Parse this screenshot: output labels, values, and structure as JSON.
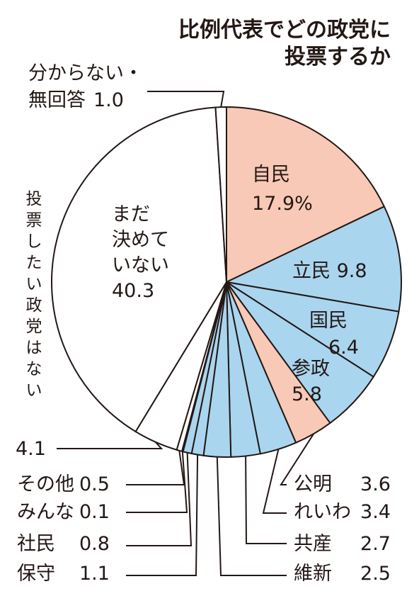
{
  "chart_data": {
    "type": "pie",
    "title_lines": [
      "比例代表でどの政党に",
      "投票するか"
    ],
    "unit": "%",
    "colors": {
      "ldp": "#f8c9b6",
      "opposition": "#a9d5ef",
      "other": "#ffffff",
      "stroke": "#231815"
    },
    "slices": [
      {
        "name": "自民",
        "value": 17.9,
        "value_text": "17.9%",
        "color": "#f8c9b6"
      },
      {
        "name": "立民",
        "value": 9.8,
        "value_text": "9.8",
        "color": "#a9d5ef"
      },
      {
        "name": "国民",
        "value": 6.4,
        "value_text": "6.4",
        "color": "#a9d5ef"
      },
      {
        "name": "参政",
        "value": 5.8,
        "value_text": "5.8",
        "color": "#a9d5ef"
      },
      {
        "name": "公明",
        "value": 3.6,
        "value_text": "3.6",
        "color": "#f8c9b6"
      },
      {
        "name": "れいわ",
        "value": 3.4,
        "value_text": "3.4",
        "color": "#a9d5ef"
      },
      {
        "name": "共産",
        "value": 2.7,
        "value_text": "2.7",
        "color": "#a9d5ef"
      },
      {
        "name": "維新",
        "value": 2.5,
        "value_text": "2.5",
        "color": "#a9d5ef"
      },
      {
        "name": "保守",
        "value": 1.1,
        "value_text": "1.1",
        "color": "#a9d5ef"
      },
      {
        "name": "社民",
        "value": 0.8,
        "value_text": "0.8",
        "color": "#a9d5ef"
      },
      {
        "name": "みんな",
        "value": 0.1,
        "value_text": "0.1",
        "color": "#a9d5ef"
      },
      {
        "name": "その他",
        "value": 0.5,
        "value_text": "0.5",
        "color": "#ffffff"
      },
      {
        "name": "投票したい政党はない",
        "value": 4.1,
        "value_text": "4.1",
        "color": "#ffffff"
      },
      {
        "name": "まだ決めていない",
        "value": 40.3,
        "value_text": "40.3",
        "color": "#ffffff"
      },
      {
        "name": "分からない・無回答",
        "value": 1.0,
        "value_text": "1.0",
        "color": "#ffffff"
      }
    ],
    "inside_labels": {
      "ldp_lines": [
        "自民",
        "17.9%"
      ],
      "cdp_line": [
        "立民",
        "9.8"
      ],
      "dpfp_lines": [
        "国民",
        "6.4"
      ],
      "sanseito_lines": [
        "参政",
        "5.8"
      ],
      "undecided_lines": [
        "まだ",
        "決めて",
        "いない",
        "40.3"
      ]
    },
    "vertical_label": "投票したい政党はない",
    "unknown_lines": [
      "分からない・",
      "無回答"
    ]
  }
}
